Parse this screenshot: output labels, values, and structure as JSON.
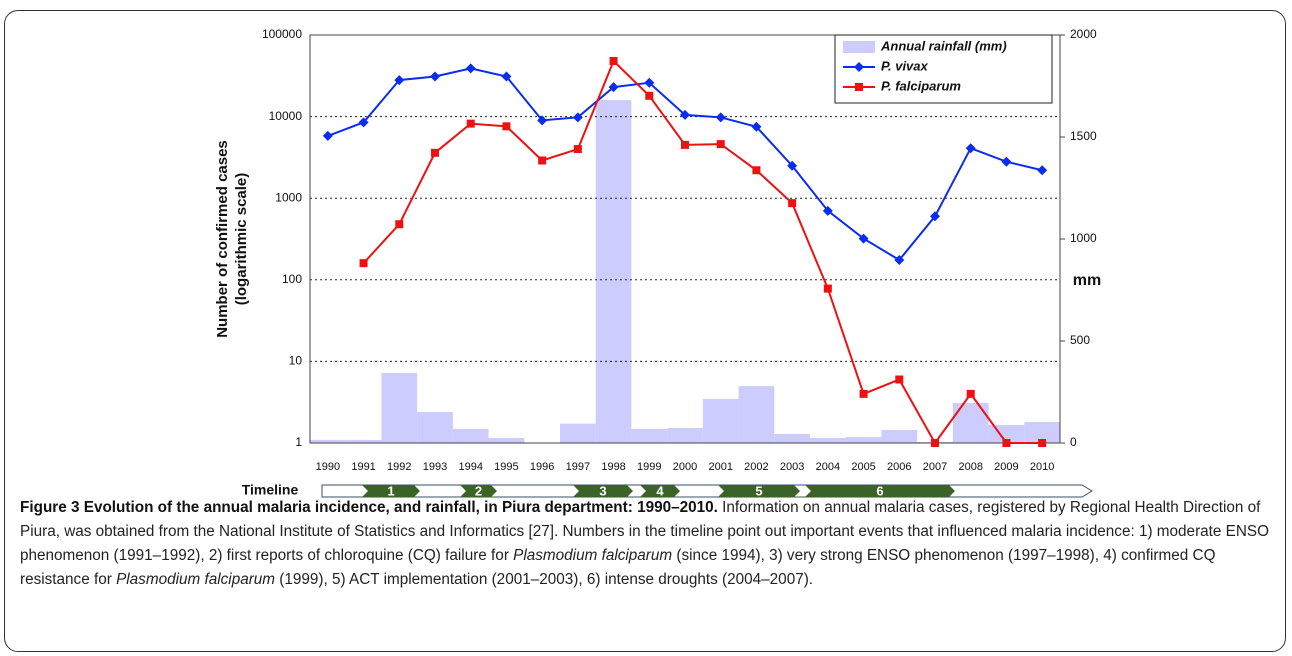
{
  "chart_data": {
    "type": "combo",
    "categories": [
      "1990",
      "1991",
      "1992",
      "1993",
      "1994",
      "1995",
      "1996",
      "1997",
      "1998",
      "1999",
      "2000",
      "2001",
      "2002",
      "2003",
      "2004",
      "2005",
      "2006",
      "2007",
      "2008",
      "2009",
      "2010"
    ],
    "series": [
      {
        "name": "Annual rainfall (mm)",
        "type": "bar",
        "axis": "y2",
        "color": "#ccccff",
        "values": [
          15,
          15,
          343,
          152,
          69,
          25,
          0,
          95,
          1681,
          69,
          74,
          216,
          279,
          44,
          25,
          29,
          64,
          5,
          196,
          88,
          103
        ]
      },
      {
        "name": "P. vivax",
        "type": "line",
        "marker": "diamond",
        "color": "#0a2cf0",
        "values": [
          5800,
          8500,
          28000,
          31000,
          39000,
          31000,
          9000,
          9800,
          23000,
          26000,
          10500,
          9800,
          7500,
          2500,
          700,
          320,
          175,
          600,
          4100,
          2800,
          2200
        ]
      },
      {
        "name": "P. falciparum",
        "type": "line",
        "marker": "square",
        "color": "#ee1111",
        "values": [
          null,
          160,
          480,
          3600,
          8200,
          7600,
          2900,
          4000,
          48000,
          18000,
          4500,
          4600,
          2200,
          870,
          78,
          4,
          6,
          1,
          4,
          1,
          1
        ]
      }
    ],
    "ylabel": [
      "Number of confirmed cases",
      "(logarithmic scale)"
    ],
    "y2label": "mm",
    "ylim": [
      1,
      100000
    ],
    "yticks": [
      1,
      10,
      100,
      1000,
      10000,
      100000
    ],
    "log_scale": true,
    "y2lim": [
      0,
      2000
    ],
    "y2ticks": [
      0,
      500,
      1000,
      1500,
      2000
    ],
    "grid": true,
    "legend": "upper right"
  },
  "timeline": {
    "label": "Timeline",
    "events": [
      "1",
      "2",
      "3",
      "4",
      "5",
      "6"
    ]
  },
  "caption": {
    "title": "Figure 3 Evolution of the annual malaria incidence, and rainfall, in Piura department: 1990–2010.",
    "parts": [
      " Information on annual malaria cases, registered by Regional Health Direction of Piura, was obtained from the National Institute of Statistics and Informatics [27]. Numbers in the timeline point out important events that influenced malaria incidence: 1) moderate ENSO phenomenon (1991–1992), 2) first reports of chloroquine (CQ) failure for ",
      "Plasmodium falciparum",
      " (since 1994), 3) very strong ENSO phenomenon (1997–1998), 4) confirmed CQ resistance for ",
      "Plasmodium falciparum",
      " (1999), 5) ACT implementation (2001–2003), 6) intense droughts (2004–2007)."
    ]
  }
}
